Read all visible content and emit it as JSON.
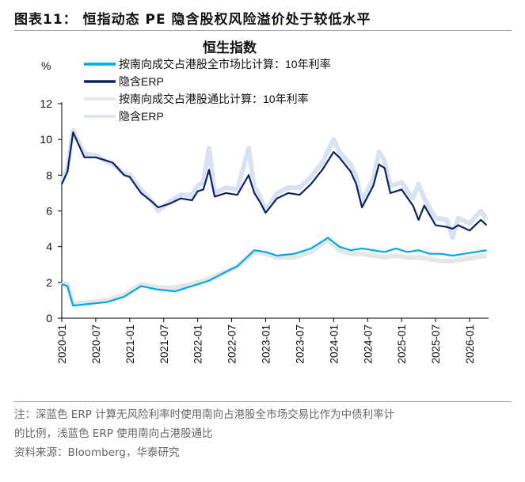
{
  "figure_title": "图表11：  恒指动态 PE 隐含股权风险溢价处于较低水平",
  "notes": [
    "注：深蓝色 ERP 计算无风险利率时使用南向占港股全市场交易比作为中债利率计",
    "的比例，浅蓝色 ERP 使用南向占港股通比",
    "资料来源：Bloomberg，华泰研究"
  ],
  "chart_data": {
    "type": "line",
    "title": "恒生指数",
    "ylabel": "%",
    "xlabel": "",
    "ylim": [
      0,
      12
    ],
    "yticks": [
      "0",
      "2",
      "4",
      "6",
      "8",
      "10",
      "12"
    ],
    "xticks": [
      "2020-01",
      "2020-07",
      "2021-01",
      "2021-07",
      "2022-01",
      "2022-07",
      "2023-01",
      "2023-07",
      "2024-01",
      "2024-07",
      "2025-01",
      "2025-07",
      "2026-01"
    ],
    "grid": false,
    "legend": "top",
    "series": [
      {
        "name": "隐含ERP",
        "role": "light-erp",
        "color": "#d9e2f3",
        "x": [
          "2020-01",
          "2020-02",
          "2020-03",
          "2020-05",
          "2020-07",
          "2020-10",
          "2020-12",
          "2021-01",
          "2021-03",
          "2021-05",
          "2021-06",
          "2021-08",
          "2021-10",
          "2021-12",
          "2022-01",
          "2022-02",
          "2022-03",
          "2022-04",
          "2022-06",
          "2022-08",
          "2022-10",
          "2022-11",
          "2022-12",
          "2023-01",
          "2023-03",
          "2023-05",
          "2023-07",
          "2023-09",
          "2023-11",
          "2024-01",
          "2024-02",
          "2024-04",
          "2024-05",
          "2024-06",
          "2024-08",
          "2024-09",
          "2024-10",
          "2024-11",
          "2025-01",
          "2025-03",
          "2025-04",
          "2025-05",
          "2025-07",
          "2025-09",
          "2025-10",
          "2025-11",
          "2026-01",
          "2026-03",
          "2026-04"
        ],
        "y": [
          7.6,
          8.4,
          10.5,
          9.2,
          9.1,
          8.6,
          8.1,
          8.0,
          7.2,
          6.5,
          6.0,
          6.5,
          6.9,
          6.9,
          7.4,
          7.6,
          9.5,
          7.0,
          7.3,
          7.2,
          9.5,
          7.3,
          6.8,
          6.0,
          7.0,
          7.3,
          7.3,
          7.9,
          8.7,
          10.0,
          9.3,
          8.6,
          7.9,
          6.5,
          7.8,
          9.3,
          8.8,
          7.4,
          7.6,
          6.7,
          7.5,
          6.7,
          5.6,
          5.5,
          4.5,
          5.6,
          5.3,
          6.0,
          5.5
        ]
      },
      {
        "name": "隐含ERP",
        "role": "dark-erp",
        "color": "#0c2461",
        "x": [
          "2020-01",
          "2020-02",
          "2020-03",
          "2020-05",
          "2020-07",
          "2020-10",
          "2020-12",
          "2021-01",
          "2021-03",
          "2021-05",
          "2021-06",
          "2021-08",
          "2021-10",
          "2021-12",
          "2022-01",
          "2022-02",
          "2022-03",
          "2022-04",
          "2022-06",
          "2022-08",
          "2022-10",
          "2022-11",
          "2022-12",
          "2023-01",
          "2023-03",
          "2023-05",
          "2023-07",
          "2023-09",
          "2023-11",
          "2024-01",
          "2024-02",
          "2024-04",
          "2024-05",
          "2024-06",
          "2024-08",
          "2024-09",
          "2024-10",
          "2024-11",
          "2025-01",
          "2025-03",
          "2025-04",
          "2025-05",
          "2025-07",
          "2025-09",
          "2025-10",
          "2025-11",
          "2026-01",
          "2026-03",
          "2026-04"
        ],
        "y": [
          7.5,
          8.2,
          10.4,
          9.0,
          9.0,
          8.7,
          8.0,
          7.9,
          7.0,
          6.5,
          6.2,
          6.4,
          6.7,
          6.6,
          7.1,
          7.2,
          8.3,
          6.8,
          7.0,
          6.9,
          8.0,
          7.0,
          6.5,
          5.9,
          6.7,
          7.0,
          6.9,
          7.5,
          8.3,
          9.3,
          9.0,
          8.2,
          7.5,
          6.2,
          7.4,
          8.6,
          8.4,
          7.0,
          7.2,
          6.3,
          5.5,
          6.3,
          5.2,
          5.1,
          5.0,
          5.2,
          4.9,
          5.5,
          5.2
        ]
      },
      {
        "name": "按南向成交占港股通比计算：10年利率",
        "role": "grey-yield",
        "color": "#e6e6e6",
        "x": [
          "2020-01",
          "2020-02",
          "2020-03",
          "2020-06",
          "2020-09",
          "2020-12",
          "2021-03",
          "2021-06",
          "2021-09",
          "2021-12",
          "2022-03",
          "2022-06",
          "2022-08",
          "2022-11",
          "2023-01",
          "2023-03",
          "2023-06",
          "2023-09",
          "2023-12",
          "2024-02",
          "2024-04",
          "2024-06",
          "2024-08",
          "2024-10",
          "2024-12",
          "2025-02",
          "2025-04",
          "2025-06",
          "2025-08",
          "2025-10",
          "2025-12",
          "2026-02",
          "2026-04"
        ],
        "y": [
          2.0,
          1.9,
          0.8,
          0.9,
          1.0,
          1.3,
          1.9,
          1.7,
          1.7,
          1.9,
          2.2,
          2.6,
          2.9,
          3.7,
          3.6,
          3.4,
          3.4,
          3.7,
          4.4,
          3.8,
          3.6,
          3.6,
          3.5,
          3.4,
          3.5,
          3.4,
          3.4,
          3.3,
          3.2,
          3.2,
          3.3,
          3.4,
          3.5
        ]
      },
      {
        "name": "按南向成交占港股全市场比计算：10年利率",
        "role": "cyan-yield",
        "color": "#00a8e8",
        "x": [
          "2020-01",
          "2020-02",
          "2020-03",
          "2020-06",
          "2020-09",
          "2020-12",
          "2021-03",
          "2021-06",
          "2021-09",
          "2021-12",
          "2022-03",
          "2022-06",
          "2022-08",
          "2022-11",
          "2023-01",
          "2023-03",
          "2023-06",
          "2023-09",
          "2023-12",
          "2024-02",
          "2024-04",
          "2024-06",
          "2024-08",
          "2024-10",
          "2024-12",
          "2025-02",
          "2025-04",
          "2025-06",
          "2025-08",
          "2025-10",
          "2025-12",
          "2026-02",
          "2026-04"
        ],
        "y": [
          1.9,
          1.8,
          0.7,
          0.8,
          0.9,
          1.2,
          1.8,
          1.6,
          1.5,
          1.8,
          2.1,
          2.6,
          2.9,
          3.8,
          3.7,
          3.5,
          3.6,
          3.9,
          4.5,
          4.0,
          3.8,
          3.9,
          3.8,
          3.7,
          3.9,
          3.7,
          3.8,
          3.6,
          3.6,
          3.5,
          3.6,
          3.7,
          3.8
        ]
      }
    ],
    "legend_entries": [
      {
        "label": "按南向成交占港股全市场比计算：10年利率",
        "color": "#00a8e8"
      },
      {
        "label": "隐含ERP",
        "color": "#0c2461"
      },
      {
        "label": "按南向成交占港股通比计算：10年利率",
        "color": "#e6e6e6"
      },
      {
        "label": "隐含ERP",
        "color": "#d9e2f3"
      }
    ]
  }
}
